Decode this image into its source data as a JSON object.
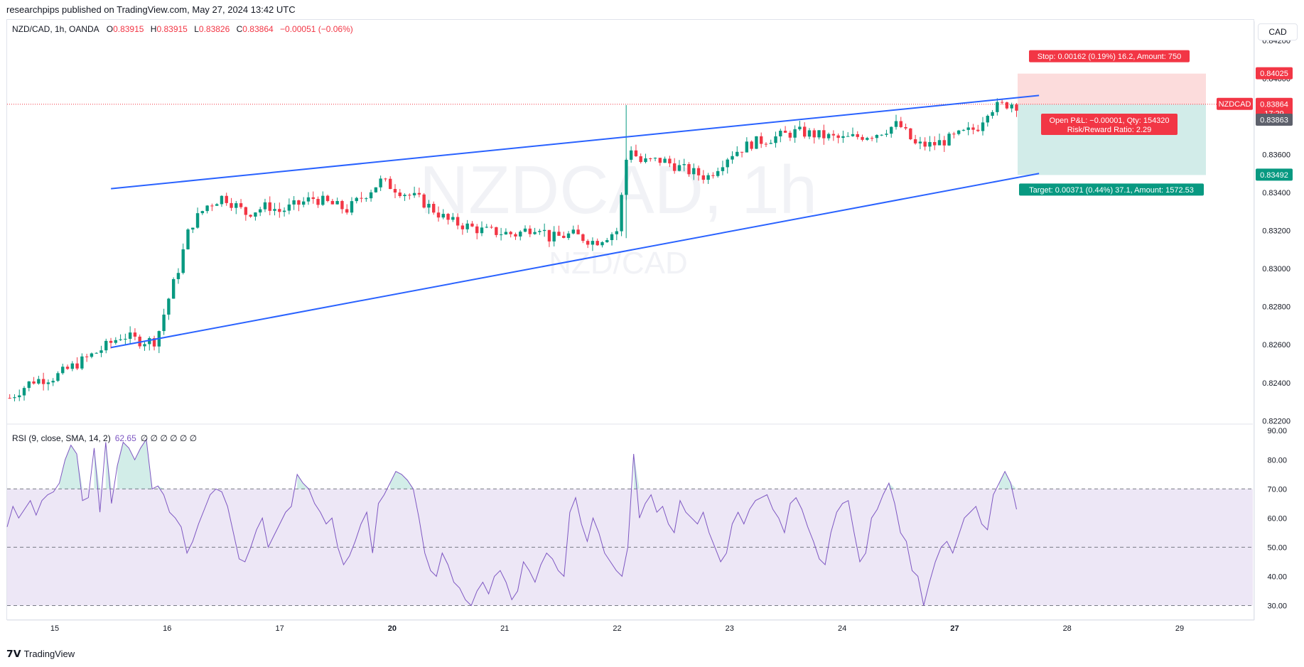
{
  "header": {
    "published_by": "researchpips published on TradingView.com, May 27, 2024 13:42 UTC"
  },
  "legend": {
    "symbol": "NZD/CAD, 1h, OANDA",
    "open_label": "O",
    "open": "0.83915",
    "high_label": "H",
    "high": "0.83915",
    "low_label": "L",
    "low": "0.83826",
    "close_label": "C",
    "close": "0.83864",
    "change": "−0.00051 (−0.06%)"
  },
  "rsi_legend": {
    "label": "RSI (9, close, SMA, 14, 2)",
    "value": "62.65",
    "placeholders": "∅ ∅ ∅ ∅ ∅ ∅"
  },
  "currency_button": "CAD",
  "watermark": {
    "symbol": "NZDCAD, 1h",
    "name": "NZD/CAD"
  },
  "footer": {
    "logo": "TradingView"
  },
  "colors": {
    "up": "#089981",
    "down": "#f23645",
    "trendline": "#2962ff",
    "rsi_line": "#7e57c2",
    "rsi_band": "#ede7f6",
    "stop_zone": "#fcdcdc",
    "target_zone": "#d2ece9"
  },
  "chart_data": [
    {
      "type": "candlestick",
      "symbol": "NZDCAD",
      "timeframe": "1h",
      "x_ticks": [
        "15",
        "16",
        "17",
        "20",
        "21",
        "22",
        "23",
        "24",
        "27",
        "28",
        "29"
      ],
      "y_ticks": [
        "0.82200",
        "0.82400",
        "0.82600",
        "0.82800",
        "0.83000",
        "0.83200",
        "0.83400",
        "0.83600",
        "0.83800",
        "0.84000",
        "0.84200"
      ],
      "ylim": [
        0.8219,
        0.843
      ],
      "close_path": [
        {
          "t": -0.4,
          "p": 0.8232
        },
        {
          "t": -0.2,
          "p": 0.8241
        },
        {
          "t": 0.0,
          "p": 0.8243
        },
        {
          "t": 0.2,
          "p": 0.825
        },
        {
          "t": 0.4,
          "p": 0.8257
        },
        {
          "t": 0.6,
          "p": 0.8265
        },
        {
          "t": 0.75,
          "p": 0.8262
        },
        {
          "t": 0.9,
          "p": 0.8262
        },
        {
          "t": 1.0,
          "p": 0.8282
        },
        {
          "t": 1.1,
          "p": 0.83
        },
        {
          "t": 1.2,
          "p": 0.8322
        },
        {
          "t": 1.35,
          "p": 0.8333
        },
        {
          "t": 1.5,
          "p": 0.8338
        },
        {
          "t": 1.7,
          "p": 0.8329
        },
        {
          "t": 1.9,
          "p": 0.8333
        },
        {
          "t": 2.0,
          "p": 0.833
        },
        {
          "t": 2.3,
          "p": 0.8337
        },
        {
          "t": 2.6,
          "p": 0.8331
        },
        {
          "t": 2.9,
          "p": 0.8346
        },
        {
          "t": 3.1,
          "p": 0.834
        },
        {
          "t": 3.25,
          "p": 0.8336
        },
        {
          "t": 3.5,
          "p": 0.8325
        },
        {
          "t": 3.8,
          "p": 0.832
        },
        {
          "t": 4.1,
          "p": 0.8318
        },
        {
          "t": 4.3,
          "p": 0.8323
        },
        {
          "t": 4.4,
          "p": 0.8316
        },
        {
          "t": 4.6,
          "p": 0.8318
        },
        {
          "t": 4.8,
          "p": 0.8314
        },
        {
          "t": 5.0,
          "p": 0.832
        },
        {
          "t": 5.1,
          "p": 0.8366
        },
        {
          "t": 5.2,
          "p": 0.8356
        },
        {
          "t": 5.4,
          "p": 0.8357
        },
        {
          "t": 5.6,
          "p": 0.8352
        },
        {
          "t": 5.8,
          "p": 0.8348
        },
        {
          "t": 6.0,
          "p": 0.836
        },
        {
          "t": 6.2,
          "p": 0.8366
        },
        {
          "t": 6.4,
          "p": 0.8369
        },
        {
          "t": 6.6,
          "p": 0.8372
        },
        {
          "t": 6.8,
          "p": 0.837
        },
        {
          "t": 7.0,
          "p": 0.8368
        },
        {
          "t": 7.3,
          "p": 0.8371
        },
        {
          "t": 7.5,
          "p": 0.8376
        },
        {
          "t": 7.65,
          "p": 0.8365
        },
        {
          "t": 7.8,
          "p": 0.8365
        },
        {
          "t": 7.95,
          "p": 0.8368
        },
        {
          "t": 8.2,
          "p": 0.8374
        },
        {
          "t": 8.3,
          "p": 0.8384
        },
        {
          "t": 8.5,
          "p": 0.8387
        },
        {
          "t": 8.55,
          "p": 0.8386
        }
      ],
      "trendlines": [
        {
          "from": {
            "t": 0.5,
            "p": 0.8342
          },
          "to": {
            "t": 8.75,
            "p": 0.8391
          }
        },
        {
          "from": {
            "t": 0.5,
            "p": 0.82585
          },
          "to": {
            "t": 8.75,
            "p": 0.835
          }
        }
      ],
      "position": {
        "side": "long",
        "entry": 0.83863,
        "stop": 0.84025,
        "target": 0.83492,
        "stop_label": "Stop: 0.00162 (0.19%) 16.2, Amount: 750",
        "target_label": "Target: 0.00371 (0.44%) 37.1, Amount: 1572.53",
        "pnl_label": "Open P&L: −0.00001, Qty: 154320",
        "rr_label": "Risk/Reward Ratio: 2.29"
      },
      "price_tags": [
        {
          "label": "0.84025",
          "kind": "stop"
        },
        {
          "label": "NZDCAD",
          "value": "0.83864",
          "countdown": "17:29",
          "kind": "last"
        },
        {
          "label": "0.83863",
          "kind": "entry"
        },
        {
          "label": "0.83492",
          "kind": "target"
        }
      ]
    },
    {
      "type": "line",
      "name": "RSI (9, close, SMA, 14, 2)",
      "y_ticks": [
        "30.00",
        "40.00",
        "50.00",
        "60.00",
        "70.00",
        "80.00",
        "90.00"
      ],
      "ylim": [
        25,
        92
      ],
      "bands": [
        70,
        50,
        30
      ],
      "values": [
        57,
        64,
        60,
        63,
        66,
        61,
        66,
        68,
        69,
        72,
        80,
        85,
        82,
        66,
        67,
        84,
        62,
        86,
        65,
        78,
        86,
        84,
        80,
        84,
        87,
        70,
        71,
        68,
        62,
        60,
        57,
        48,
        52,
        58,
        63,
        68,
        70,
        69,
        64,
        55,
        46,
        45,
        50,
        56,
        60,
        50,
        54,
        58,
        62,
        64,
        75,
        72,
        70,
        65,
        62,
        58,
        60,
        50,
        44,
        47,
        52,
        58,
        62,
        48,
        65,
        68,
        72,
        76,
        75,
        73,
        70,
        60,
        48,
        42,
        40,
        48,
        44,
        38,
        36,
        32,
        30,
        35,
        38,
        34,
        40,
        42,
        38,
        32,
        35,
        45,
        42,
        38,
        44,
        48,
        46,
        42,
        40,
        62,
        67,
        58,
        52,
        60,
        55,
        48,
        45,
        42,
        40,
        50,
        82,
        60,
        65,
        68,
        62,
        64,
        58,
        55,
        66,
        62,
        60,
        58,
        62,
        55,
        50,
        45,
        48,
        58,
        62,
        58,
        63,
        66,
        67,
        68,
        63,
        60,
        55,
        65,
        67,
        63,
        57,
        52,
        46,
        44,
        55,
        62,
        65,
        66,
        55,
        45,
        48,
        60,
        63,
        68,
        72,
        65,
        55,
        52,
        42,
        40,
        30,
        38,
        45,
        50,
        52,
        48,
        54,
        60,
        62,
        64,
        58,
        56,
        68,
        72,
        76,
        72,
        63
      ]
    }
  ]
}
